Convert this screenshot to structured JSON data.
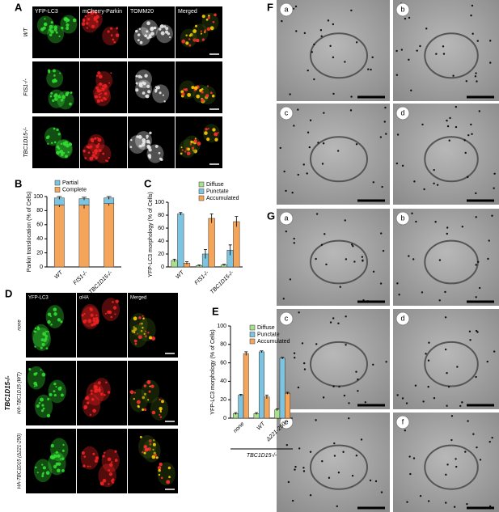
{
  "panel_a": {
    "label": "A",
    "columns": [
      "YFP-LC3",
      "mCherry-Parkin",
      "TOMM20",
      "Merged"
    ],
    "rows": [
      "WT",
      "FIS1-/-",
      "TBC1D15-/-"
    ]
  },
  "panel_d": {
    "label": "D",
    "columns": [
      "YFP-LC3",
      "αHA",
      "Merged"
    ],
    "rows": [
      "none",
      "HA-TBC1D15 (WT)",
      "HA-TBC1D15 (Δ221-250)"
    ],
    "group": "TBC1D15-/-"
  },
  "panel_f": {
    "label": "F",
    "images": [
      "a",
      "b",
      "c",
      "d"
    ]
  },
  "panel_g": {
    "label": "G",
    "images": [
      "a",
      "b",
      "c",
      "d",
      "e",
      "f"
    ]
  },
  "chart_data": [
    {
      "type": "stacked_bar",
      "label": "B",
      "ylabel": "Parkin translocation (% of Cells)",
      "categories": [
        "WT",
        "FIS1-/-",
        "TBC1D15-/-"
      ],
      "series": [
        {
          "name": "Complete",
          "color": "#f5a55a",
          "values": [
            88,
            88,
            90
          ],
          "errors": [
            3,
            5,
            3
          ]
        },
        {
          "name": "Partial",
          "color": "#7cc4e0",
          "values": [
            10,
            9,
            8
          ],
          "errors": [
            2,
            2,
            2
          ]
        }
      ],
      "ylim": [
        0,
        100
      ],
      "yticks": [
        0,
        20,
        40,
        60,
        80,
        100
      ]
    },
    {
      "type": "bar",
      "label": "C",
      "ylabel": "YFP-LC3 morphology (% of Cells)",
      "categories": [
        "WT",
        "FIS1-/-",
        "TBC1D15-/-"
      ],
      "series": [
        {
          "name": "Diffuse",
          "color": "#a8e08c",
          "values": [
            10,
            2,
            3
          ],
          "errors": [
            2,
            1,
            1
          ]
        },
        {
          "name": "Punctate",
          "color": "#7cc4e0",
          "values": [
            82,
            20,
            26
          ],
          "errors": [
            2,
            7,
            8
          ]
        },
        {
          "name": "Accumulated",
          "color": "#f5a55a",
          "values": [
            6,
            75,
            70
          ],
          "errors": [
            2,
            7,
            8
          ]
        }
      ],
      "ylim": [
        0,
        100
      ],
      "yticks": [
        0,
        20,
        40,
        60,
        80,
        100
      ]
    },
    {
      "type": "bar",
      "label": "E",
      "ylabel": "YFP-LC3 morphology (% of Cells)",
      "xlabel": "TBC1D15-/-",
      "categories": [
        "none",
        "WT",
        "Δ221-250"
      ],
      "series": [
        {
          "name": "Diffuse",
          "color": "#a8e08c",
          "values": [
            5,
            5,
            9
          ],
          "errors": [
            1,
            1,
            1
          ]
        },
        {
          "name": "Punctate",
          "color": "#7cc4e0",
          "values": [
            25,
            72,
            65
          ],
          "errors": [
            1,
            1,
            1
          ]
        },
        {
          "name": "Accumulated",
          "color": "#f5a55a",
          "values": [
            70,
            23,
            27
          ],
          "errors": [
            2,
            2,
            1
          ]
        }
      ],
      "ylim": [
        0,
        100
      ],
      "yticks": [
        0,
        20,
        40,
        60,
        80,
        100
      ]
    }
  ]
}
